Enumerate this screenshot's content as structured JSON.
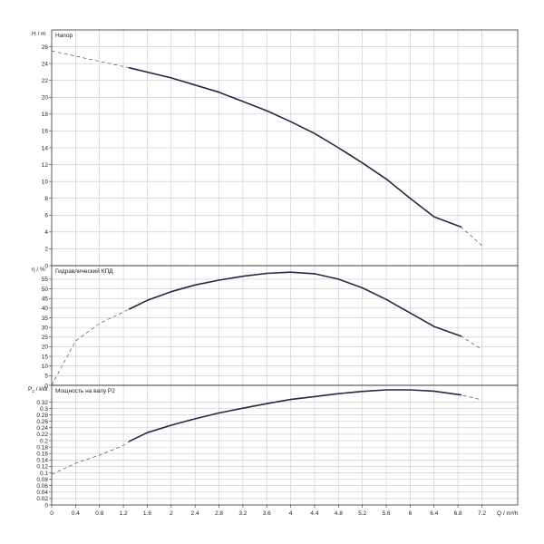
{
  "chart_data": {
    "type": "line",
    "xlabel": "Q / m³/h",
    "xlim": [
      0,
      7.8
    ],
    "x_ticks": [
      "0",
      "0.4",
      "0.8",
      "1.2",
      "1.6",
      "2",
      "2.4",
      "2.8",
      "3.2",
      "3.6",
      "4",
      "4.4",
      "4.8",
      "5.2",
      "5.6",
      "6",
      "6.4",
      "6.8",
      "7.2"
    ],
    "x_tick_values": [
      0,
      0.4,
      0.8,
      1.2,
      1.6,
      2,
      2.4,
      2.8,
      3.2,
      3.6,
      4,
      4.4,
      4.8,
      5.2,
      5.6,
      6,
      6.4,
      6.8,
      7.2
    ],
    "grid": true,
    "panels": [
      {
        "id": "head",
        "ylabel": "H / m",
        "title": "Напор",
        "ylim": [
          0,
          28
        ],
        "y_ticks": [
          "0",
          "2",
          "4",
          "6",
          "8",
          "10",
          "12",
          "14",
          "16",
          "18",
          "20",
          "22",
          "24",
          "26"
        ],
        "y_tick_values": [
          0,
          2,
          4,
          6,
          8,
          10,
          12,
          14,
          16,
          18,
          20,
          22,
          24,
          26
        ],
        "x": [
          0,
          1.3,
          2,
          2.8,
          3.6,
          4,
          4.4,
          4.8,
          5.2,
          5.6,
          6,
          6.4,
          6.85,
          7.2
        ],
        "y": [
          25.5,
          23.5,
          22.3,
          20.6,
          18.4,
          17.1,
          15.7,
          14.0,
          12.2,
          10.3,
          8.0,
          5.8,
          4.6,
          2.4
        ],
        "solid_range": [
          1.3,
          6.85
        ]
      },
      {
        "id": "efficiency",
        "ylabel": "η / %",
        "title": "Гидравлический КПД",
        "ylim": [
          0,
          62
        ],
        "y_ticks": [
          "0",
          "5",
          "10",
          "15",
          "20",
          "25",
          "30",
          "35",
          "40",
          "45",
          "50",
          "55"
        ],
        "y_tick_values": [
          0,
          5,
          10,
          15,
          20,
          25,
          30,
          35,
          40,
          45,
          50,
          55
        ],
        "x": [
          0,
          0.4,
          0.8,
          1.3,
          1.6,
          2,
          2.4,
          2.8,
          3.2,
          3.6,
          4,
          4.4,
          4.8,
          5.2,
          5.6,
          6,
          6.4,
          6.85,
          7.2
        ],
        "y": [
          0,
          23,
          32,
          39.5,
          44,
          48.5,
          52,
          54.5,
          56.5,
          58,
          58.6,
          57.8,
          55,
          50.5,
          44.5,
          37.5,
          30.5,
          25.5,
          18.5
        ],
        "solid_range": [
          1.3,
          6.85
        ]
      },
      {
        "id": "power",
        "ylabel_main": "P",
        "ylabel_sub": "2",
        "ylabel_unit": " / kW",
        "title": "Мощность на валу P2",
        "ylim": [
          0,
          0.372
        ],
        "y_ticks": [
          "0",
          "0.02",
          "0.04",
          "0.06",
          "0.08",
          "0.1",
          "0.12",
          "0.14",
          "0.16",
          "0.18",
          "0.2",
          "0.22",
          "0.24",
          "0.26",
          "0.28",
          "0.3",
          "0.32"
        ],
        "y_tick_values": [
          0,
          0.02,
          0.04,
          0.06,
          0.08,
          0.1,
          0.12,
          0.14,
          0.16,
          0.18,
          0.2,
          0.22,
          0.24,
          0.26,
          0.28,
          0.3,
          0.32
        ],
        "x": [
          0,
          0.4,
          0.8,
          1.2,
          1.3,
          1.6,
          2,
          2.4,
          2.8,
          3.2,
          3.6,
          4,
          4.4,
          4.8,
          5.2,
          5.6,
          6,
          6.4,
          6.85,
          7.2
        ],
        "y": [
          0.095,
          0.13,
          0.155,
          0.185,
          0.198,
          0.225,
          0.248,
          0.268,
          0.286,
          0.301,
          0.315,
          0.328,
          0.337,
          0.346,
          0.353,
          0.358,
          0.358,
          0.354,
          0.342,
          0.327
        ],
        "solid_range": [
          1.3,
          6.85
        ]
      }
    ]
  }
}
